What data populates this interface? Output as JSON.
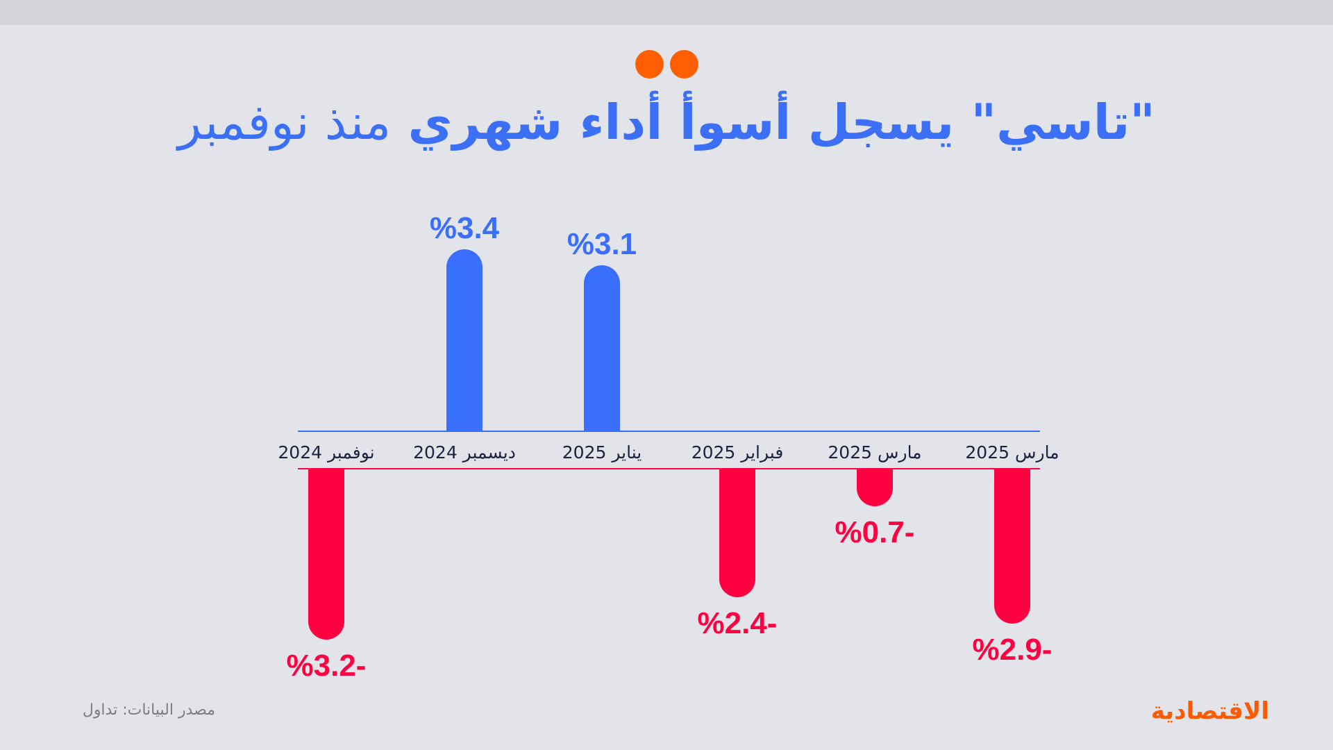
{
  "header": {
    "title_bold": "\"تاسي\" يسجل أسوأ أداء شهري",
    "title_light": "منذ نوفمبر",
    "accent_dots": 2
  },
  "colors": {
    "background": "#e3e4e9",
    "top_band": "#d3d4d8",
    "title": "#3b6ff5",
    "positive": "#3a6ffd",
    "negative": "#ff0040",
    "accent": "#ff5f00",
    "axis_label": "#1c2340",
    "source_text": "#7b7d86",
    "logo": "#ff5a00"
  },
  "chart_data": {
    "type": "bar",
    "title": "\"تاسي\" يسجل أسوأ أداء شهري منذ نوفمبر",
    "xlabel": "",
    "ylabel": "",
    "unit": "%",
    "categories": [
      "نوفمبر 2024",
      "ديسمبر 2024",
      "يناير 2025",
      "فبراير 2025",
      "مارس 2025",
      "مارس 2025"
    ],
    "values": [
      -3.2,
      3.4,
      3.1,
      -2.4,
      -0.7,
      -2.9
    ],
    "value_labels": [
      "%3.2-",
      "%3.4",
      "%3.1",
      "%2.4-",
      "%0.7-",
      "%2.9-"
    ],
    "ylim": [
      -3.5,
      3.5
    ],
    "grid": false,
    "legend": null,
    "bar_style": "rounded ends; blue for gains, red for losses"
  },
  "footer": {
    "source": "مصدر البيانات: تداول",
    "logo": "الاقتصادية"
  }
}
